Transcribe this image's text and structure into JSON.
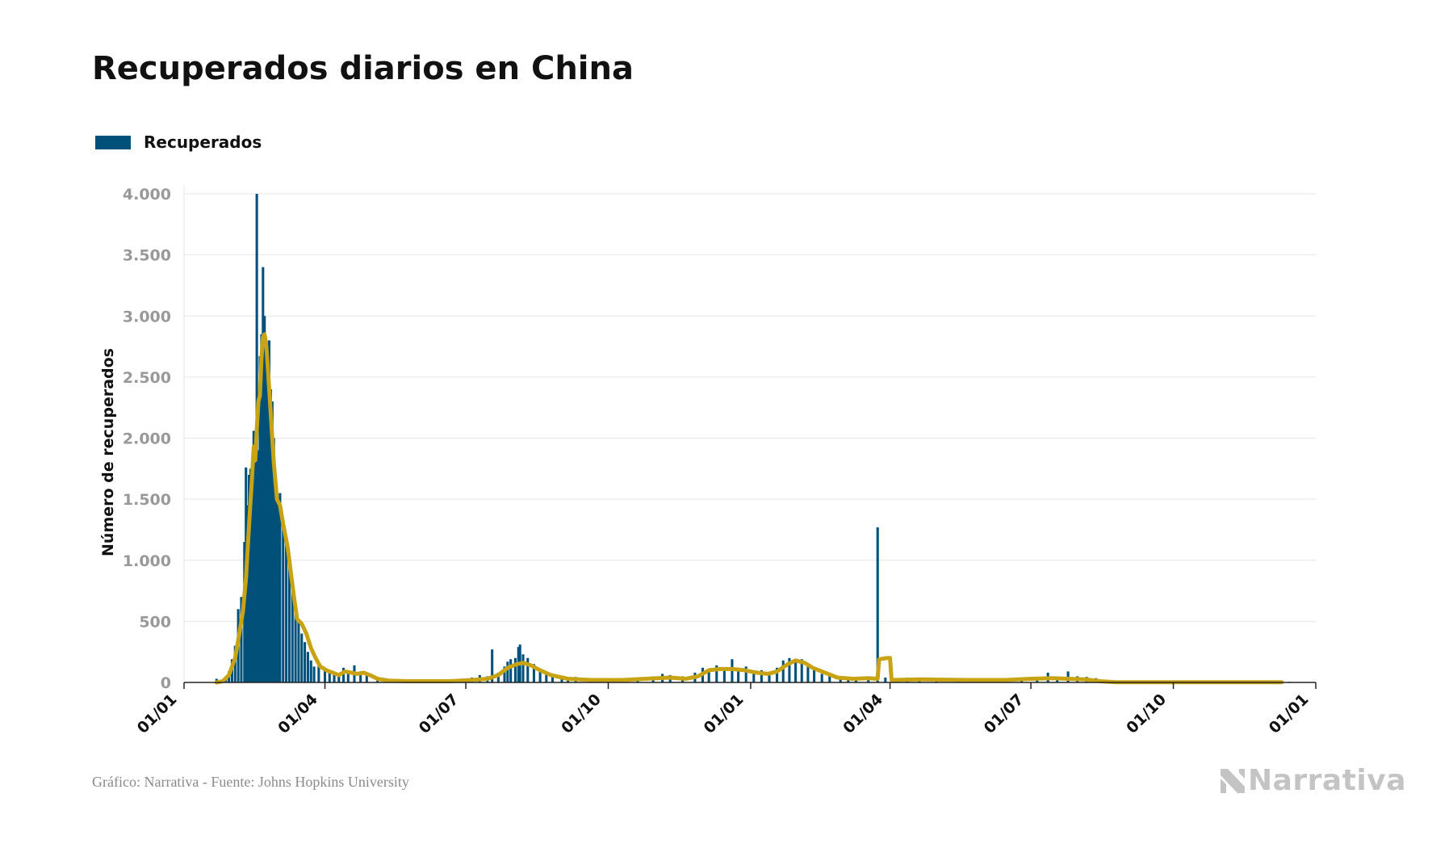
{
  "header": {
    "title": "Recuperados diarios en China"
  },
  "legend": {
    "label": "Recuperados",
    "color": "#00507a"
  },
  "footer": {
    "source": "Gráfico: Narrativa - Fuente: Johns Hopkins University",
    "brand": "Narrativa"
  },
  "chart_data": {
    "type": "bar",
    "title": "Recuperados diarios en China",
    "ylabel": "Número de recuperados",
    "xlabel": "",
    "ylim": [
      0,
      4000
    ],
    "yticks": [
      {
        "value": 0,
        "label": "0"
      },
      {
        "value": 500,
        "label": "500"
      },
      {
        "value": 1000,
        "label": "1.000"
      },
      {
        "value": 1500,
        "label": "1.500"
      },
      {
        "value": 2000,
        "label": "2.000"
      },
      {
        "value": 2500,
        "label": "2.500"
      },
      {
        "value": 3000,
        "label": "3.000"
      },
      {
        "value": 3500,
        "label": "3.500"
      },
      {
        "value": 4000,
        "label": "4.000"
      }
    ],
    "xlim": [
      "2020-01-01",
      "2022-01-01"
    ],
    "xticks": [
      {
        "date": "2020-01-01",
        "label": "01/01"
      },
      {
        "date": "2020-04-01",
        "label": "01/04"
      },
      {
        "date": "2020-07-01",
        "label": "01/07"
      },
      {
        "date": "2020-10-01",
        "label": "01/10"
      },
      {
        "date": "2021-01-01",
        "label": "01/01"
      },
      {
        "date": "2021-04-01",
        "label": "01/04"
      },
      {
        "date": "2021-07-01",
        "label": "01/07"
      },
      {
        "date": "2021-10-01",
        "label": "01/10"
      },
      {
        "date": "2022-01-01",
        "label": "01/01"
      }
    ],
    "grid": true,
    "legend_position": "top-left",
    "colors": {
      "bars": "#00507a",
      "average_line": "#c8a415",
      "grid": "#e6e6e6"
    },
    "series": [
      {
        "name": "Recuperados",
        "type": "bar",
        "points": [
          [
            "2020-01-22",
            30
          ],
          [
            "2020-01-24",
            10
          ],
          [
            "2020-01-26",
            20
          ],
          [
            "2020-01-28",
            40
          ],
          [
            "2020-01-30",
            90
          ],
          [
            "2020-02-01",
            190
          ],
          [
            "2020-02-03",
            300
          ],
          [
            "2020-02-05",
            600
          ],
          [
            "2020-02-07",
            700
          ],
          [
            "2020-02-09",
            1150
          ],
          [
            "2020-02-10",
            1760
          ],
          [
            "2020-02-11",
            1450
          ],
          [
            "2020-02-12",
            1700
          ],
          [
            "2020-02-13",
            1750
          ],
          [
            "2020-02-14",
            1650
          ],
          [
            "2020-02-15",
            2060
          ],
          [
            "2020-02-16",
            1800
          ],
          [
            "2020-02-17",
            4000
          ],
          [
            "2020-02-18",
            1900
          ],
          [
            "2020-02-19",
            2670
          ],
          [
            "2020-02-20",
            2850
          ],
          [
            "2020-02-21",
            3400
          ],
          [
            "2020-02-22",
            3000
          ],
          [
            "2020-02-23",
            2800
          ],
          [
            "2020-02-24",
            2550
          ],
          [
            "2020-02-25",
            2800
          ],
          [
            "2020-02-26",
            2400
          ],
          [
            "2020-02-27",
            2300
          ],
          [
            "2020-02-28",
            2000
          ],
          [
            "2020-02-29",
            1650
          ],
          [
            "2020-03-01",
            1500
          ],
          [
            "2020-03-02",
            1450
          ],
          [
            "2020-03-03",
            1550
          ],
          [
            "2020-03-05",
            1300
          ],
          [
            "2020-03-07",
            1150
          ],
          [
            "2020-03-09",
            1000
          ],
          [
            "2020-03-11",
            800
          ],
          [
            "2020-03-13",
            600
          ],
          [
            "2020-03-15",
            500
          ],
          [
            "2020-03-17",
            400
          ],
          [
            "2020-03-19",
            330
          ],
          [
            "2020-03-21",
            250
          ],
          [
            "2020-03-23",
            180
          ],
          [
            "2020-03-25",
            130
          ],
          [
            "2020-03-28",
            150
          ],
          [
            "2020-04-01",
            120
          ],
          [
            "2020-04-04",
            90
          ],
          [
            "2020-04-07",
            70
          ],
          [
            "2020-04-10",
            60
          ],
          [
            "2020-04-13",
            120
          ],
          [
            "2020-04-16",
            100
          ],
          [
            "2020-04-20",
            140
          ],
          [
            "2020-04-24",
            90
          ],
          [
            "2020-04-28",
            70
          ],
          [
            "2020-05-05",
            40
          ],
          [
            "2020-05-15",
            20
          ],
          [
            "2020-06-01",
            10
          ],
          [
            "2020-06-15",
            15
          ],
          [
            "2020-06-28",
            20
          ],
          [
            "2020-07-05",
            40
          ],
          [
            "2020-07-10",
            60
          ],
          [
            "2020-07-15",
            50
          ],
          [
            "2020-07-18",
            270
          ],
          [
            "2020-07-22",
            80
          ],
          [
            "2020-07-26",
            130
          ],
          [
            "2020-07-28",
            170
          ],
          [
            "2020-07-30",
            190
          ],
          [
            "2020-08-02",
            200
          ],
          [
            "2020-08-04",
            290
          ],
          [
            "2020-08-05",
            310
          ],
          [
            "2020-08-07",
            230
          ],
          [
            "2020-08-10",
            200
          ],
          [
            "2020-08-14",
            150
          ],
          [
            "2020-08-18",
            100
          ],
          [
            "2020-08-22",
            70
          ],
          [
            "2020-08-26",
            50
          ],
          [
            "2020-09-01",
            40
          ],
          [
            "2020-09-05",
            30
          ],
          [
            "2020-09-10",
            45
          ],
          [
            "2020-09-20",
            20
          ],
          [
            "2020-10-05",
            25
          ],
          [
            "2020-10-20",
            35
          ],
          [
            "2020-10-30",
            50
          ],
          [
            "2020-11-05",
            70
          ],
          [
            "2020-11-10",
            60
          ],
          [
            "2020-11-18",
            50
          ],
          [
            "2020-11-26",
            80
          ],
          [
            "2020-12-01",
            120
          ],
          [
            "2020-12-05",
            110
          ],
          [
            "2020-12-10",
            140
          ],
          [
            "2020-12-15",
            120
          ],
          [
            "2020-12-20",
            190
          ],
          [
            "2020-12-24",
            110
          ],
          [
            "2020-12-29",
            130
          ],
          [
            "2021-01-03",
            80
          ],
          [
            "2021-01-08",
            100
          ],
          [
            "2021-01-13",
            70
          ],
          [
            "2021-01-18",
            120
          ],
          [
            "2021-01-22",
            180
          ],
          [
            "2021-01-26",
            200
          ],
          [
            "2021-01-30",
            170
          ],
          [
            "2021-02-03",
            190
          ],
          [
            "2021-02-07",
            130
          ],
          [
            "2021-02-11",
            110
          ],
          [
            "2021-02-16",
            70
          ],
          [
            "2021-02-21",
            50
          ],
          [
            "2021-02-28",
            30
          ],
          [
            "2021-03-05",
            20
          ],
          [
            "2021-03-10",
            30
          ],
          [
            "2021-03-18",
            40
          ],
          [
            "2021-03-24",
            1270
          ],
          [
            "2021-03-29",
            40
          ],
          [
            "2021-04-05",
            30
          ],
          [
            "2021-04-12",
            40
          ],
          [
            "2021-04-20",
            25
          ],
          [
            "2021-05-01",
            20
          ],
          [
            "2021-05-15",
            30
          ],
          [
            "2021-06-01",
            25
          ],
          [
            "2021-06-15",
            30
          ],
          [
            "2021-06-25",
            40
          ],
          [
            "2021-07-05",
            45
          ],
          [
            "2021-07-12",
            80
          ],
          [
            "2021-07-18",
            40
          ],
          [
            "2021-07-25",
            90
          ],
          [
            "2021-07-31",
            50
          ],
          [
            "2021-08-06",
            45
          ],
          [
            "2021-08-12",
            35
          ],
          [
            "2021-08-18",
            20
          ],
          [
            "2021-08-28",
            5
          ],
          [
            "2021-09-15",
            5
          ],
          [
            "2021-10-15",
            5
          ],
          [
            "2021-11-15",
            5
          ],
          [
            "2021-12-15",
            5
          ]
        ]
      },
      {
        "type": "line",
        "points": [
          [
            "2020-01-22",
            0
          ],
          [
            "2020-01-26",
            10
          ],
          [
            "2020-01-30",
            60
          ],
          [
            "2020-02-03",
            200
          ],
          [
            "2020-02-06",
            420
          ],
          [
            "2020-02-08",
            580
          ],
          [
            "2020-02-10",
            850
          ],
          [
            "2020-02-12",
            1300
          ],
          [
            "2020-02-14",
            1700
          ],
          [
            "2020-02-15",
            1930
          ],
          [
            "2020-02-16",
            1820
          ],
          [
            "2020-02-17",
            2070
          ],
          [
            "2020-02-18",
            2300
          ],
          [
            "2020-02-19",
            2350
          ],
          [
            "2020-02-20",
            2650
          ],
          [
            "2020-02-21",
            2830
          ],
          [
            "2020-02-22",
            2850
          ],
          [
            "2020-02-23",
            2780
          ],
          [
            "2020-02-24",
            2600
          ],
          [
            "2020-02-25",
            2400
          ],
          [
            "2020-02-26",
            2200
          ],
          [
            "2020-02-27",
            2000
          ],
          [
            "2020-02-28",
            1800
          ],
          [
            "2020-03-01",
            1500
          ],
          [
            "2020-03-03",
            1450
          ],
          [
            "2020-03-05",
            1300
          ],
          [
            "2020-03-08",
            1100
          ],
          [
            "2020-03-10",
            900
          ],
          [
            "2020-03-12",
            700
          ],
          [
            "2020-03-14",
            520
          ],
          [
            "2020-03-17",
            480
          ],
          [
            "2020-03-20",
            400
          ],
          [
            "2020-03-23",
            280
          ],
          [
            "2020-03-26",
            200
          ],
          [
            "2020-03-29",
            130
          ],
          [
            "2020-04-02",
            100
          ],
          [
            "2020-04-06",
            80
          ],
          [
            "2020-04-10",
            60
          ],
          [
            "2020-04-14",
            90
          ],
          [
            "2020-04-18",
            80
          ],
          [
            "2020-04-22",
            70
          ],
          [
            "2020-04-26",
            80
          ],
          [
            "2020-04-30",
            60
          ],
          [
            "2020-05-05",
            30
          ],
          [
            "2020-05-12",
            15
          ],
          [
            "2020-05-25",
            10
          ],
          [
            "2020-06-20",
            10
          ],
          [
            "2020-07-05",
            20
          ],
          [
            "2020-07-15",
            30
          ],
          [
            "2020-07-22",
            60
          ],
          [
            "2020-07-28",
            120
          ],
          [
            "2020-08-03",
            150
          ],
          [
            "2020-08-07",
            160
          ],
          [
            "2020-08-12",
            140
          ],
          [
            "2020-08-18",
            100
          ],
          [
            "2020-08-25",
            60
          ],
          [
            "2020-09-05",
            30
          ],
          [
            "2020-09-20",
            20
          ],
          [
            "2020-10-10",
            20
          ],
          [
            "2020-10-25",
            30
          ],
          [
            "2020-11-10",
            40
          ],
          [
            "2020-11-20",
            30
          ],
          [
            "2020-11-28",
            50
          ],
          [
            "2020-12-05",
            100
          ],
          [
            "2020-12-12",
            110
          ],
          [
            "2020-12-20",
            110
          ],
          [
            "2020-12-28",
            100
          ],
          [
            "2021-01-05",
            80
          ],
          [
            "2021-01-12",
            70
          ],
          [
            "2021-01-18",
            90
          ],
          [
            "2021-01-25",
            150
          ],
          [
            "2021-01-30",
            180
          ],
          [
            "2021-02-05",
            160
          ],
          [
            "2021-02-10",
            120
          ],
          [
            "2021-02-18",
            80
          ],
          [
            "2021-02-26",
            40
          ],
          [
            "2021-03-08",
            30
          ],
          [
            "2021-03-18",
            35
          ],
          [
            "2021-03-24",
            30
          ],
          [
            "2021-03-25",
            190
          ],
          [
            "2021-03-30",
            200
          ],
          [
            "2021-04-01",
            200
          ],
          [
            "2021-04-02",
            20
          ],
          [
            "2021-04-20",
            25
          ],
          [
            "2021-05-20",
            20
          ],
          [
            "2021-06-15",
            20
          ],
          [
            "2021-07-01",
            30
          ],
          [
            "2021-07-15",
            35
          ],
          [
            "2021-07-25",
            30
          ],
          [
            "2021-08-05",
            25
          ],
          [
            "2021-08-15",
            10
          ],
          [
            "2021-08-25",
            2
          ],
          [
            "2021-12-01",
            2
          ],
          [
            "2021-12-10",
            2
          ]
        ]
      }
    ]
  }
}
